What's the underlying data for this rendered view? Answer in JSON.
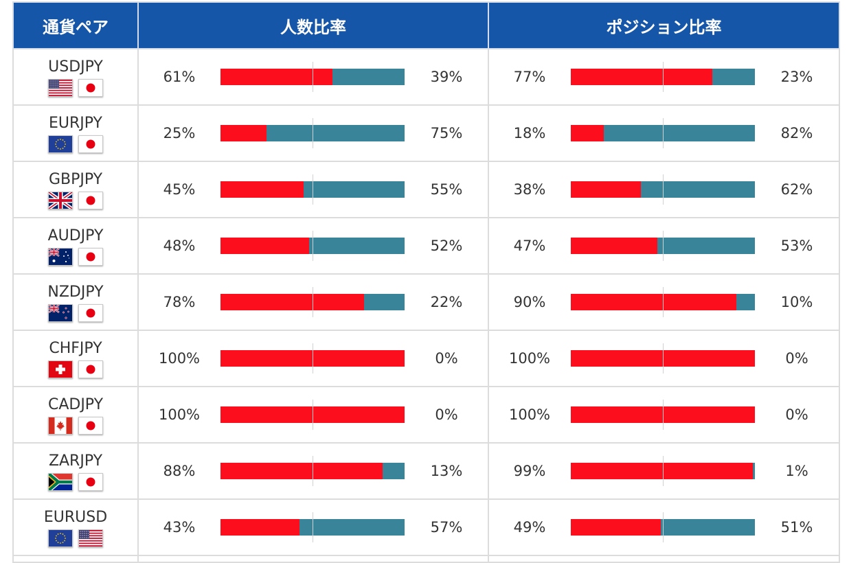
{
  "header": {
    "pair": "通貨ペア",
    "people_ratio": "人数比率",
    "position_ratio": "ポジション比率"
  },
  "colors": {
    "header_bg": "#1656a8",
    "buy_bar": "#fc0e1c",
    "sell_bar": "#3a8499"
  },
  "rows": [
    {
      "pair": "USDJPY",
      "flags": [
        "us-flag-icon",
        "jp-flag-icon"
      ],
      "people": {
        "left": "61%",
        "right": "39%",
        "value": 61
      },
      "position": {
        "left": "77%",
        "right": "23%",
        "value": 77
      }
    },
    {
      "pair": "EURJPY",
      "flags": [
        "eu-flag-icon",
        "jp-flag-icon"
      ],
      "people": {
        "left": "25%",
        "right": "75%",
        "value": 25
      },
      "position": {
        "left": "18%",
        "right": "82%",
        "value": 18
      }
    },
    {
      "pair": "GBPJPY",
      "flags": [
        "uk-flag-icon",
        "jp-flag-icon"
      ],
      "people": {
        "left": "45%",
        "right": "55%",
        "value": 45
      },
      "position": {
        "left": "38%",
        "right": "62%",
        "value": 38
      }
    },
    {
      "pair": "AUDJPY",
      "flags": [
        "au-flag-icon",
        "jp-flag-icon"
      ],
      "people": {
        "left": "48%",
        "right": "52%",
        "value": 48
      },
      "position": {
        "left": "47%",
        "right": "53%",
        "value": 47
      }
    },
    {
      "pair": "NZDJPY",
      "flags": [
        "nz-flag-icon",
        "jp-flag-icon"
      ],
      "people": {
        "left": "78%",
        "right": "22%",
        "value": 78
      },
      "position": {
        "left": "90%",
        "right": "10%",
        "value": 90
      }
    },
    {
      "pair": "CHFJPY",
      "flags": [
        "ch-flag-icon",
        "jp-flag-icon"
      ],
      "people": {
        "left": "100%",
        "right": "0%",
        "value": 100
      },
      "position": {
        "left": "100%",
        "right": "0%",
        "value": 100
      }
    },
    {
      "pair": "CADJPY",
      "flags": [
        "ca-flag-icon",
        "jp-flag-icon"
      ],
      "people": {
        "left": "100%",
        "right": "0%",
        "value": 100
      },
      "position": {
        "left": "100%",
        "right": "0%",
        "value": 100
      }
    },
    {
      "pair": "ZARJPY",
      "flags": [
        "za-flag-icon",
        "jp-flag-icon"
      ],
      "people": {
        "left": "88%",
        "right": "13%",
        "value": 88
      },
      "position": {
        "left": "99%",
        "right": "1%",
        "value": 99
      }
    },
    {
      "pair": "EURUSD",
      "flags": [
        "eu-flag-icon",
        "us-flag-icon"
      ],
      "people": {
        "left": "43%",
        "right": "57%",
        "value": 43
      },
      "position": {
        "left": "49%",
        "right": "51%",
        "value": 49
      }
    }
  ]
}
